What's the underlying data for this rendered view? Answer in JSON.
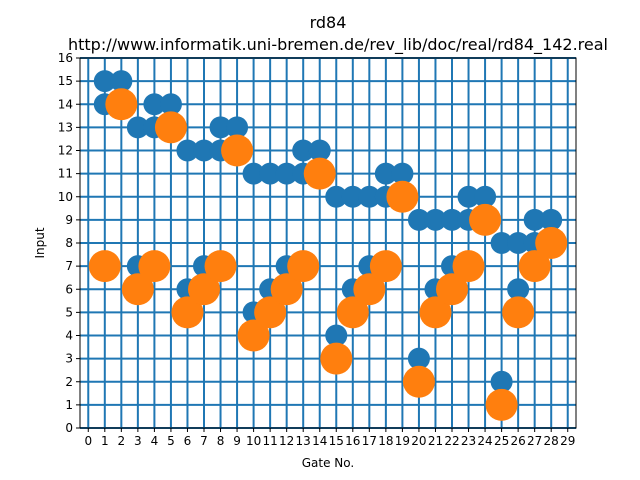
{
  "chart_data": {
    "type": "scatter",
    "title": "rd84",
    "subtitle": "http://www.informatik.uni-bremen.de/rev_lib/doc/real/rd84_142.real",
    "xlabel": "Gate No.",
    "ylabel": "Input",
    "xlim": [
      -0.5,
      29.5
    ],
    "ylim": [
      0,
      16
    ],
    "xticks": [
      0,
      1,
      2,
      3,
      4,
      5,
      6,
      7,
      8,
      9,
      10,
      11,
      12,
      13,
      14,
      15,
      16,
      17,
      18,
      19,
      20,
      21,
      22,
      23,
      24,
      25,
      26,
      27,
      28,
      29
    ],
    "yticks": [
      0,
      1,
      2,
      3,
      4,
      5,
      6,
      7,
      8,
      9,
      10,
      11,
      12,
      13,
      14,
      15,
      16
    ],
    "grid": true,
    "colors": {
      "control": "#1f77b4",
      "target": "#ff7f0e"
    },
    "series": [
      {
        "role": "control",
        "points": [
          [
            1,
            15
          ],
          [
            1,
            14
          ],
          [
            2,
            15
          ],
          [
            3,
            13
          ],
          [
            3,
            7
          ],
          [
            4,
            14
          ],
          [
            4,
            13
          ],
          [
            5,
            14
          ],
          [
            6,
            12
          ],
          [
            6,
            6
          ],
          [
            7,
            12
          ],
          [
            7,
            7
          ],
          [
            8,
            13
          ],
          [
            8,
            12
          ],
          [
            9,
            13
          ],
          [
            10,
            11
          ],
          [
            10,
            5
          ],
          [
            11,
            11
          ],
          [
            11,
            6
          ],
          [
            12,
            11
          ],
          [
            12,
            7
          ],
          [
            13,
            12
          ],
          [
            13,
            11
          ],
          [
            14,
            12
          ],
          [
            15,
            10
          ],
          [
            15,
            4
          ],
          [
            16,
            10
          ],
          [
            16,
            6
          ],
          [
            17,
            10
          ],
          [
            17,
            7
          ],
          [
            18,
            11
          ],
          [
            18,
            10
          ],
          [
            19,
            11
          ],
          [
            20,
            9
          ],
          [
            20,
            3
          ],
          [
            21,
            9
          ],
          [
            21,
            6
          ],
          [
            22,
            9
          ],
          [
            22,
            7
          ],
          [
            23,
            10
          ],
          [
            23,
            9
          ],
          [
            24,
            10
          ],
          [
            25,
            8
          ],
          [
            25,
            2
          ],
          [
            26,
            8
          ],
          [
            26,
            6
          ],
          [
            27,
            9
          ],
          [
            27,
            8
          ],
          [
            28,
            9
          ]
        ]
      },
      {
        "role": "target",
        "points": [
          [
            1,
            7
          ],
          [
            2,
            14
          ],
          [
            3,
            6
          ],
          [
            4,
            7
          ],
          [
            5,
            13
          ],
          [
            6,
            5
          ],
          [
            7,
            6
          ],
          [
            8,
            7
          ],
          [
            9,
            12
          ],
          [
            10,
            4
          ],
          [
            11,
            5
          ],
          [
            12,
            6
          ],
          [
            13,
            7
          ],
          [
            14,
            11
          ],
          [
            15,
            3
          ],
          [
            16,
            5
          ],
          [
            17,
            6
          ],
          [
            18,
            7
          ],
          [
            19,
            10
          ],
          [
            20,
            2
          ],
          [
            21,
            5
          ],
          [
            22,
            6
          ],
          [
            23,
            7
          ],
          [
            24,
            9
          ],
          [
            25,
            1
          ],
          [
            26,
            5
          ],
          [
            27,
            7
          ],
          [
            28,
            8
          ]
        ]
      }
    ]
  }
}
